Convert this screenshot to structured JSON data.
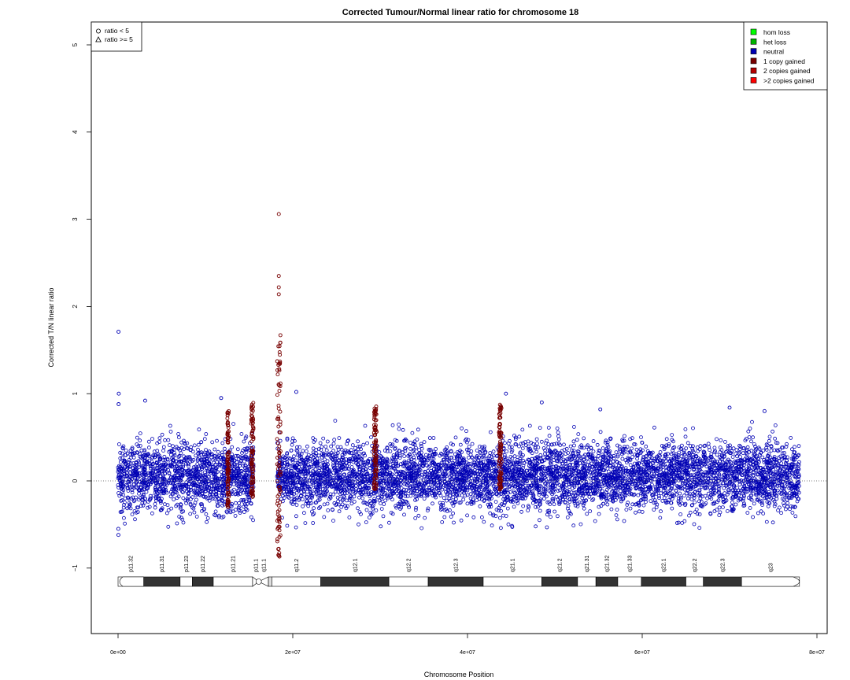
{
  "chart_data": {
    "type": "scatter",
    "title": "Corrected Tumour/Normal linear ratio for chromosome  18",
    "xlabel": "Chromosome Position",
    "ylabel": "Corrected T/N linear ratio",
    "xlim": [
      0,
      80000000
    ],
    "ylim": [
      -1.75,
      5.2
    ],
    "x_ticks": [
      0,
      20000000,
      40000000,
      60000000,
      80000000
    ],
    "x_tick_labels": [
      "0e+00",
      "2e+07",
      "4e+07",
      "6e+07",
      "8e+07"
    ],
    "y_ticks": [
      -1,
      0,
      1,
      2,
      3,
      4,
      5
    ],
    "y_tick_labels": [
      "−1",
      "0",
      "1",
      "2",
      "3",
      "4",
      "5"
    ],
    "reference_line_y": 0,
    "shape_legend": {
      "placement": "top-left",
      "entries": [
        {
          "label": "ratio < 5",
          "shape": "circle"
        },
        {
          "label": "ratio >= 5",
          "shape": "triangle"
        }
      ]
    },
    "color_legend": {
      "placement": "top-right",
      "entries": [
        {
          "label": "hom loss",
          "color": "#00ff00"
        },
        {
          "label": "het loss",
          "color": "#00b400"
        },
        {
          "label": "neutral",
          "color": "#0000b4"
        },
        {
          "label": "1 copy gained",
          "color": "#780000"
        },
        {
          "label": "2 copies gained",
          "color": "#b40000"
        },
        {
          "label": ">2 copies gained",
          "color": "#ff0000"
        }
      ]
    },
    "series": [
      {
        "name": "neutral",
        "color": "#0000b4",
        "x_range": [
          0,
          78000000
        ],
        "gap": [
          15500000,
          18200000
        ],
        "typical_y_range": [
          -0.45,
          0.55
        ],
        "outliers": [
          {
            "x": 50000,
            "y": 1.71
          },
          {
            "x": 80000,
            "y": 1.0
          },
          {
            "x": 60000,
            "y": 0.88
          },
          {
            "x": 30000,
            "y": -0.55
          },
          {
            "x": 40000,
            "y": -0.62
          },
          {
            "x": 3100000,
            "y": 0.92
          },
          {
            "x": 11800000,
            "y": 0.95
          },
          {
            "x": 20400000,
            "y": 1.02
          },
          {
            "x": 44400000,
            "y": 1.0
          },
          {
            "x": 48500000,
            "y": 0.9
          },
          {
            "x": 70000000,
            "y": 0.84
          },
          {
            "x": 74000000,
            "y": 0.8
          },
          {
            "x": 55200000,
            "y": 0.82
          }
        ]
      },
      {
        "name": "1 copy gained",
        "color": "#780000",
        "segments": [
          {
            "x_range": [
              12500000,
              12700000
            ],
            "y_range": [
              -0.3,
              0.8
            ]
          },
          {
            "x_range": [
              15200000,
              15500000
            ],
            "y_range": [
              -0.2,
              0.9
            ]
          },
          {
            "x_range": [
              18200000,
              18600000
            ],
            "y_range": [
              -0.88,
              1.7
            ]
          },
          {
            "x_range": [
              29300000,
              29600000
            ],
            "y_range": [
              -0.1,
              0.9
            ]
          },
          {
            "x_range": [
              43600000,
              43900000
            ],
            "y_range": [
              -0.1,
              0.88
            ]
          }
        ],
        "outliers": [
          {
            "x": 18400000,
            "y": 3.06
          },
          {
            "x": 18400000,
            "y": 2.35
          },
          {
            "x": 18400000,
            "y": 2.22
          },
          {
            "x": 18400000,
            "y": 2.14
          },
          {
            "x": 18350000,
            "y": -0.85
          }
        ]
      }
    ],
    "ideogram": {
      "bands": [
        {
          "name": "p11.32",
          "start": 0,
          "end": 2900000,
          "stain": "gneg"
        },
        {
          "name": "p11.31",
          "start": 2900000,
          "end": 7100000,
          "stain": "gpos"
        },
        {
          "name": "p11.23",
          "start": 7100000,
          "end": 8500000,
          "stain": "gneg"
        },
        {
          "name": "p11.22",
          "start": 8500000,
          "end": 10900000,
          "stain": "gpos"
        },
        {
          "name": "p11.21",
          "start": 10900000,
          "end": 15400000,
          "stain": "gneg"
        },
        {
          "name": "p11.1",
          "start": 15400000,
          "end": 16100000,
          "stain": "acen"
        },
        {
          "name": "q11.1",
          "start": 16100000,
          "end": 17200000,
          "stain": "acen"
        },
        {
          "name": "",
          "start": 17200000,
          "end": 17600000,
          "stain": "gvar"
        },
        {
          "name": "q11.2",
          "start": 17600000,
          "end": 23200000,
          "stain": "gneg"
        },
        {
          "name": "q12.1",
          "start": 23200000,
          "end": 31000000,
          "stain": "gpos"
        },
        {
          "name": "q12.2",
          "start": 31000000,
          "end": 35500000,
          "stain": "gneg"
        },
        {
          "name": "q12.3",
          "start": 35500000,
          "end": 41800000,
          "stain": "gpos"
        },
        {
          "name": "q21.1",
          "start": 41800000,
          "end": 48500000,
          "stain": "gneg"
        },
        {
          "name": "q21.2",
          "start": 48500000,
          "end": 52600000,
          "stain": "gpos"
        },
        {
          "name": "q21.31",
          "start": 52600000,
          "end": 54700000,
          "stain": "gneg"
        },
        {
          "name": "q21.32",
          "start": 54700000,
          "end": 57200000,
          "stain": "gpos"
        },
        {
          "name": "q21.33",
          "start": 57200000,
          "end": 59900000,
          "stain": "gneg"
        },
        {
          "name": "q22.1",
          "start": 59900000,
          "end": 65000000,
          "stain": "gpos"
        },
        {
          "name": "q22.2",
          "start": 65000000,
          "end": 67000000,
          "stain": "gneg"
        },
        {
          "name": "q22.3",
          "start": 67000000,
          "end": 71400000,
          "stain": "gpos"
        },
        {
          "name": "q23",
          "start": 71400000,
          "end": 78000000,
          "stain": "gneg"
        }
      ]
    }
  }
}
